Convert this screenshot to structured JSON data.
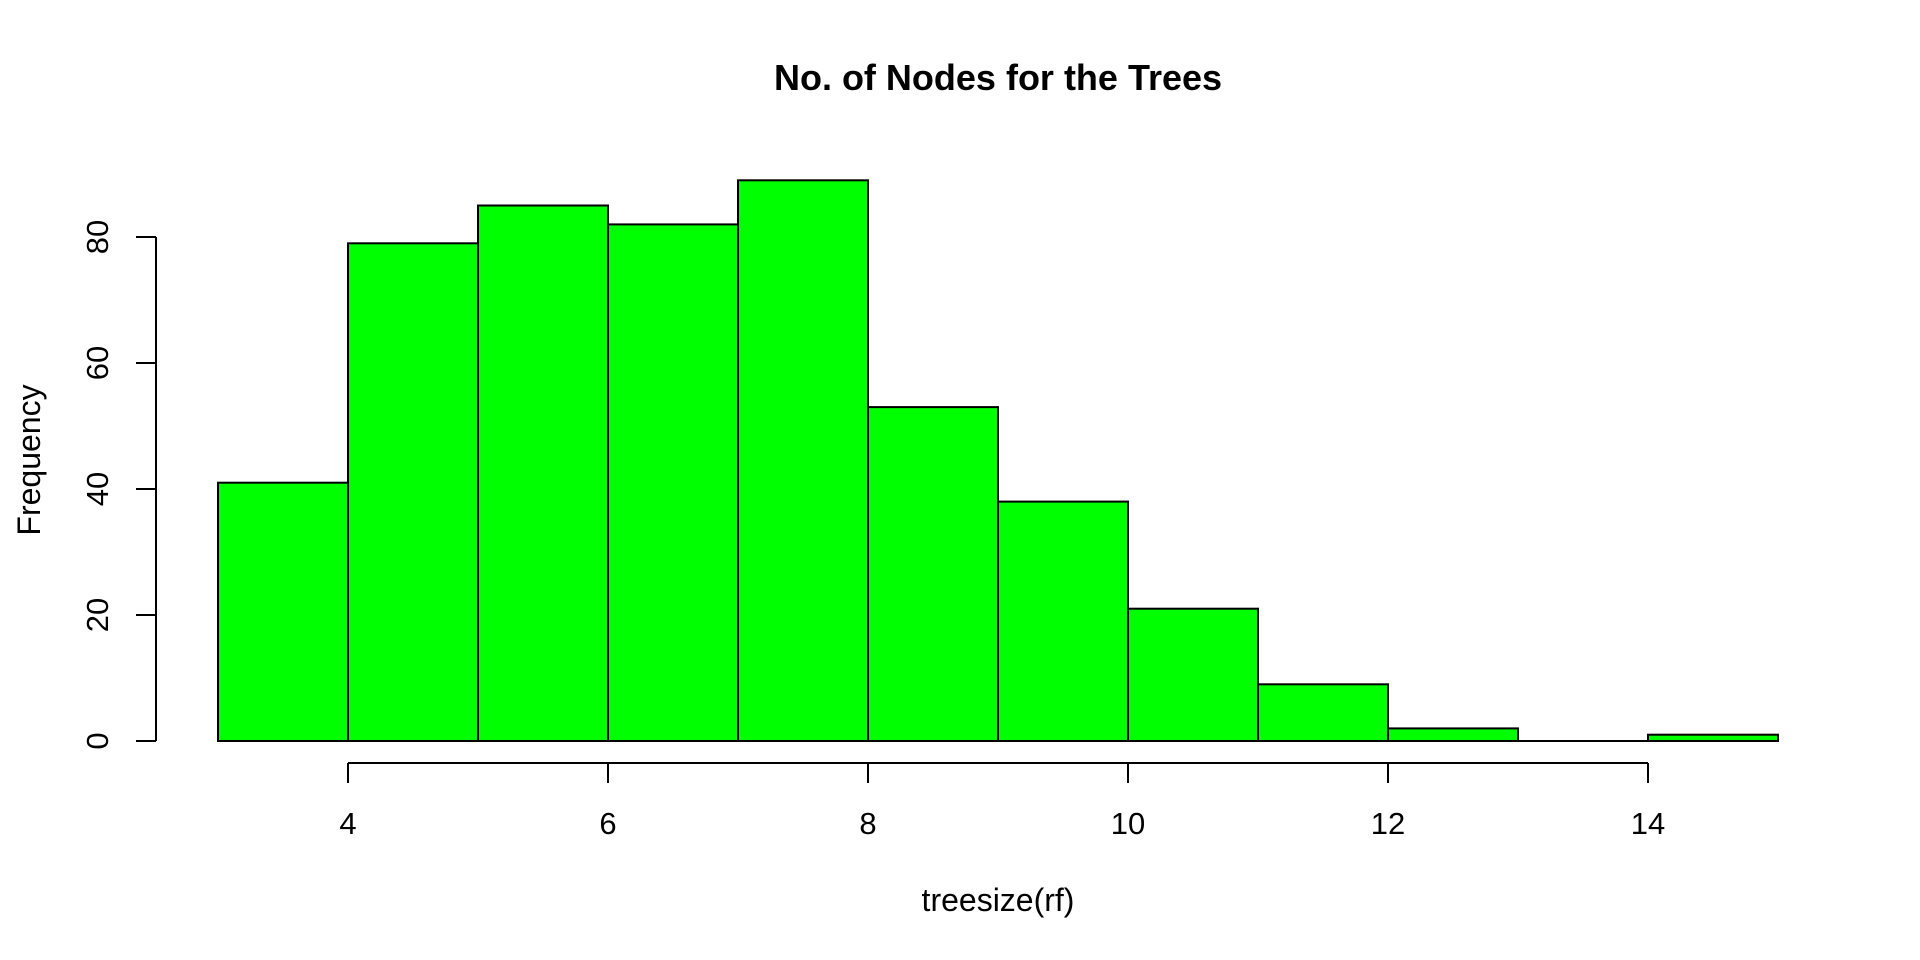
{
  "chart_data": {
    "type": "bar",
    "subtype": "histogram",
    "title": "No. of Nodes for the Trees",
    "xlabel": "treesize(rf)",
    "ylabel": "Frequency",
    "bin_edges": [
      3,
      4,
      5,
      6,
      7,
      8,
      9,
      10,
      11,
      12,
      13,
      14,
      15
    ],
    "frequencies": [
      41,
      79,
      85,
      82,
      89,
      53,
      38,
      21,
      9,
      2,
      0,
      1
    ],
    "x_ticks": [
      4,
      6,
      8,
      10,
      12,
      14
    ],
    "y_ticks": [
      0,
      20,
      40,
      60,
      80
    ],
    "xlim": [
      3,
      15
    ],
    "ylim": [
      0,
      89
    ],
    "bar_fill": "#00ff00",
    "bar_border": "#000000",
    "axis_color": "#000000",
    "text_color": "#000000",
    "background": "#ffffff",
    "grid": false,
    "legend": false
  }
}
